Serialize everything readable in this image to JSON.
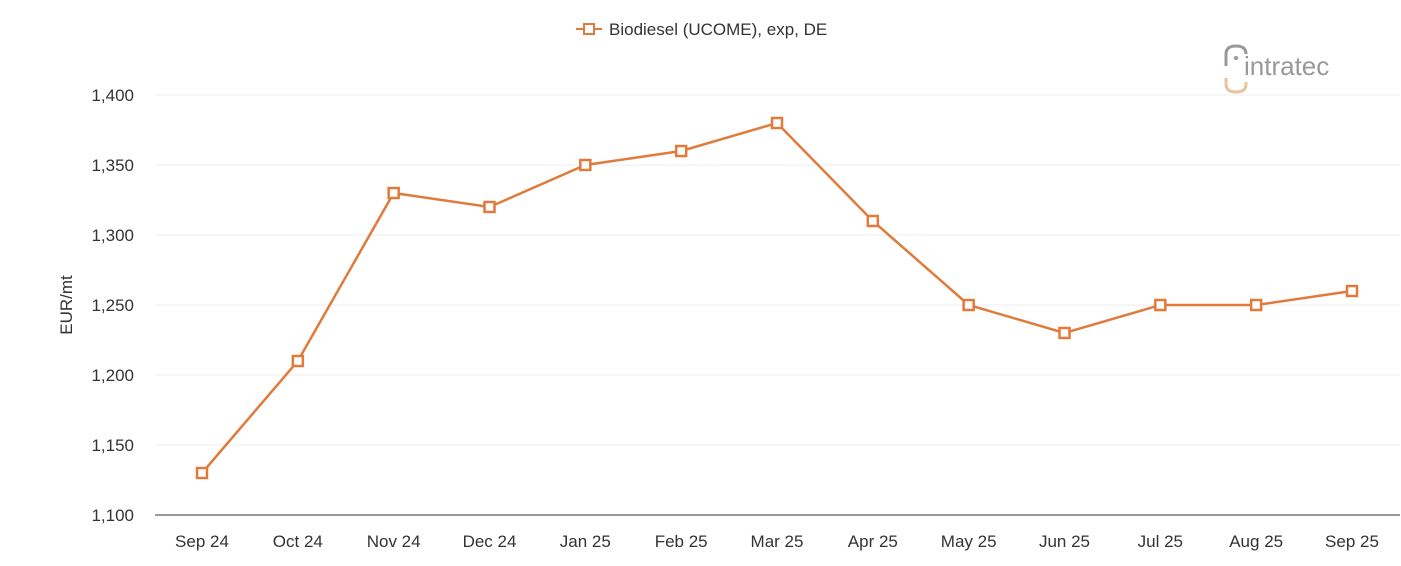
{
  "chart_data": {
    "type": "line",
    "title": "",
    "xlabel": "",
    "ylabel": "EUR/mt",
    "ylim": [
      1100,
      1400
    ],
    "yticks": [
      1100,
      1150,
      1200,
      1250,
      1300,
      1350,
      1400
    ],
    "ytick_labels": [
      "1,100",
      "1,150",
      "1,200",
      "1,250",
      "1,300",
      "1,350",
      "1,400"
    ],
    "grid": true,
    "legend_position": "top-center",
    "categories": [
      "Sep 24",
      "Oct 24",
      "Nov 24",
      "Dec 24",
      "Jan 25",
      "Feb 25",
      "Mar 25",
      "Apr 25",
      "May 25",
      "Jun 25",
      "Jul 25",
      "Aug 25",
      "Sep 25"
    ],
    "series": [
      {
        "name": "Biodiesel (UCOME), exp, DE",
        "color": "#e07b3c",
        "marker": "square-open",
        "values": [
          1130,
          1210,
          1330,
          1320,
          1350,
          1360,
          1380,
          1310,
          1250,
          1230,
          1250,
          1250,
          1260
        ]
      }
    ]
  },
  "logo": {
    "text": "intratec"
  }
}
